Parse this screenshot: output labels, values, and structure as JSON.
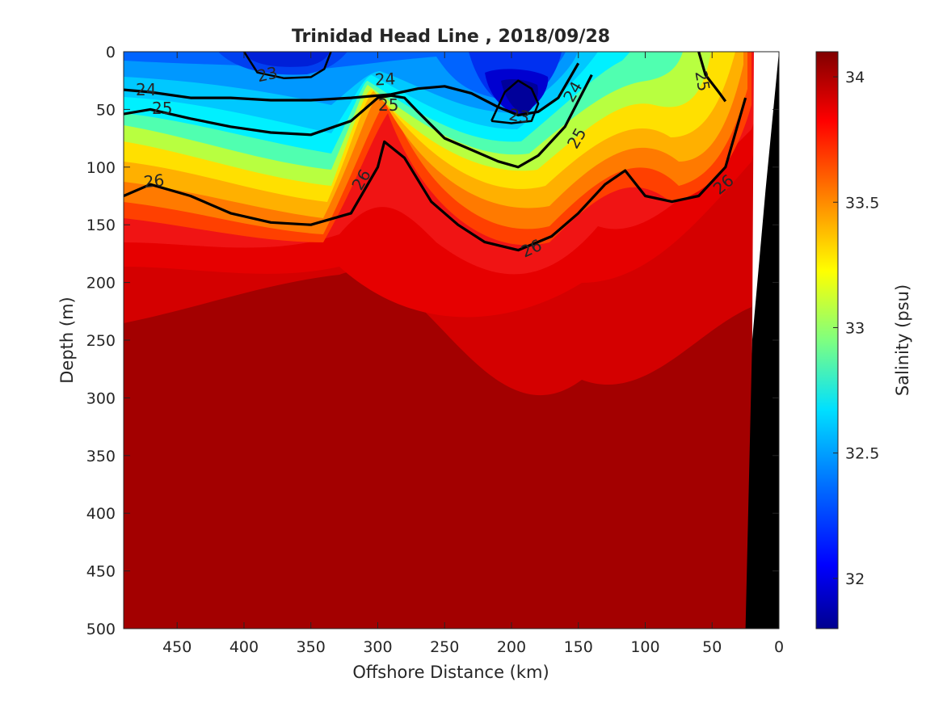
{
  "chart_data": {
    "type": "heatmap",
    "title": "Trinidad Head Line , 2018/09/28",
    "xlabel": "Offshore Distance (km)",
    "ylabel": "Depth (m)",
    "colorbar_label": "Salinity (psu)",
    "xlim": [
      490,
      0
    ],
    "ylim": [
      0,
      500
    ],
    "clim": [
      31.8,
      34.1
    ],
    "x_ticks": [
      450,
      400,
      350,
      300,
      250,
      200,
      150,
      100,
      50,
      0
    ],
    "y_ticks": [
      0,
      50,
      100,
      150,
      200,
      250,
      300,
      350,
      400,
      450,
      500
    ],
    "colorbar_ticks": [
      32,
      32.5,
      33,
      33.5,
      34
    ],
    "colormap": [
      "#00008f",
      "#0000ff",
      "#0080ff",
      "#00ffff",
      "#80ff80",
      "#ffff00",
      "#ff8000",
      "#ff0000",
      "#800000"
    ],
    "contour_labels": [
      "23",
      "23",
      "24",
      "24",
      "24",
      "25",
      "25",
      "25",
      "25",
      "26",
      "26",
      "26",
      "26"
    ],
    "density_contours": [
      {
        "level": 24,
        "x": [
          490,
          470,
          440,
          410,
          380,
          350,
          320,
          290,
          270,
          250,
          230,
          210,
          195,
          180,
          165,
          150
        ],
        "y": [
          33,
          35,
          40,
          40,
          42,
          42,
          40,
          37,
          32,
          30,
          36,
          48,
          55,
          52,
          40,
          10
        ]
      },
      {
        "level": 25,
        "x": [
          490,
          470,
          440,
          410,
          380,
          350,
          320,
          300,
          290,
          280,
          270,
          250,
          230,
          210,
          195,
          180,
          160,
          140
        ],
        "y": [
          54,
          50,
          58,
          65,
          70,
          72,
          60,
          40,
          38,
          40,
          52,
          75,
          85,
          95,
          100,
          90,
          65,
          20
        ]
      },
      {
        "level": 26,
        "x": [
          490,
          470,
          440,
          410,
          380,
          350,
          320,
          300,
          295,
          280,
          260,
          240,
          220,
          195,
          170,
          150,
          130,
          115,
          100,
          80,
          60,
          40,
          25
        ],
        "y": [
          125,
          115,
          125,
          140,
          148,
          150,
          140,
          100,
          78,
          92,
          130,
          150,
          165,
          172,
          160,
          140,
          115,
          103,
          125,
          130,
          125,
          100,
          40
        ]
      },
      {
        "level": 25,
        "x": [
          60,
          55,
          45,
          40
        ],
        "y": [
          0,
          20,
          35,
          43
        ]
      },
      {
        "level": 23,
        "x": [
          400,
          390,
          370,
          350,
          340,
          335
        ],
        "y": [
          0,
          18,
          23,
          22,
          15,
          0
        ]
      },
      {
        "level": 23,
        "x": [
          215,
          205,
          195,
          185,
          180,
          185,
          200,
          215
        ],
        "y": [
          60,
          35,
          25,
          32,
          45,
          60,
          62,
          60
        ]
      }
    ],
    "shelf_mask": {
      "x": [
        25,
        20,
        10,
        0,
        0,
        25
      ],
      "y": [
        500,
        250,
        120,
        0,
        500,
        500
      ]
    }
  }
}
